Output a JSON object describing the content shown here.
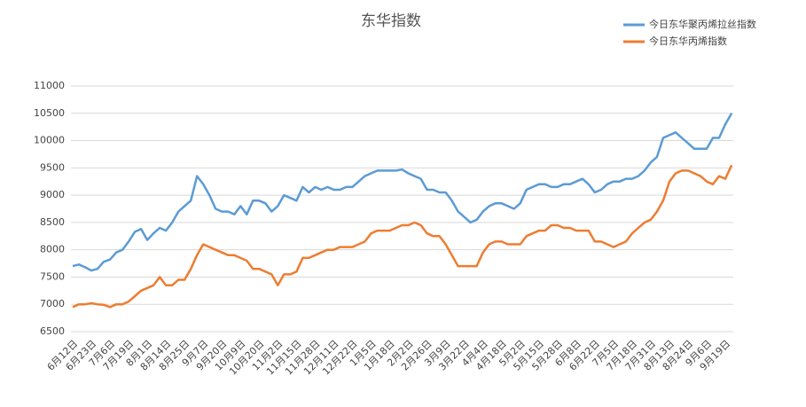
{
  "chart_data": {
    "type": "line",
    "title": "东华指数",
    "categories": [
      "6月12日",
      null,
      null,
      "6月23日",
      null,
      null,
      "7月6日",
      null,
      null,
      "7月19日",
      null,
      null,
      "8月1日",
      null,
      null,
      "8月14日",
      null,
      null,
      "8月25日",
      null,
      null,
      "9月7日",
      null,
      null,
      "9月20日",
      null,
      null,
      "10月9日",
      null,
      null,
      "10月20日",
      null,
      null,
      "11月2日",
      null,
      null,
      "11月15日",
      null,
      null,
      "11月28日",
      null,
      null,
      "12月11日",
      null,
      null,
      "12月22日",
      null,
      null,
      "1月5日",
      null,
      null,
      "1月18日",
      null,
      null,
      "2月2日",
      null,
      null,
      "2月26日",
      null,
      null,
      "3月9日",
      null,
      null,
      "3月22日",
      null,
      null,
      "4月4日",
      null,
      null,
      "4月18日",
      null,
      null,
      "5月2日",
      null,
      null,
      "5月15日",
      null,
      null,
      "5月28日",
      null,
      null,
      "6月8日",
      null,
      null,
      "6月22日",
      null,
      null,
      "7月5日",
      null,
      null,
      "7月18日",
      null,
      null,
      "7月31日",
      null,
      null,
      "8月13日",
      null,
      null,
      "8月24日",
      null,
      null,
      "9月6日",
      null,
      null,
      "9月19日",
      null
    ],
    "series": [
      {
        "name": "今日东华聚丙烯拉丝指数",
        "color": "#5b9bd5",
        "values": [
          7700,
          7730,
          7680,
          7620,
          7650,
          7780,
          7820,
          7950,
          8000,
          8150,
          8330,
          8380,
          8180,
          8300,
          8400,
          8350,
          8500,
          8700,
          8800,
          8900,
          9350,
          9200,
          9000,
          8750,
          8700,
          8700,
          8650,
          8800,
          8650,
          8900,
          8900,
          8850,
          8700,
          8800,
          9000,
          8950,
          8900,
          9150,
          9050,
          9150,
          9100,
          9150,
          9100,
          9100,
          9150,
          9150,
          9250,
          9350,
          9400,
          9450,
          9450,
          9450,
          9450,
          9470,
          9400,
          9350,
          9300,
          9100,
          9100,
          9050,
          9050,
          8900,
          8700,
          8600,
          8500,
          8550,
          8700,
          8800,
          8850,
          8850,
          8800,
          8750,
          8850,
          9100,
          9150,
          9200,
          9200,
          9150,
          9150,
          9200,
          9200,
          9250,
          9300,
          9200,
          9050,
          9100,
          9200,
          9250,
          9250,
          9300,
          9300,
          9350,
          9450,
          9600,
          9700,
          10050,
          10100,
          10150,
          10050,
          9950,
          9850,
          9850,
          9850,
          10050,
          10050,
          10300,
          10500
        ]
      },
      {
        "name": "今日东华丙烯指数",
        "color": "#ed7d31",
        "values": [
          6950,
          7000,
          7000,
          7020,
          7000,
          6990,
          6950,
          7000,
          7000,
          7050,
          7150,
          7250,
          7300,
          7350,
          7500,
          7350,
          7350,
          7450,
          7450,
          7650,
          7900,
          8100,
          8050,
          8000,
          7950,
          7900,
          7900,
          7850,
          7800,
          7650,
          7650,
          7600,
          7550,
          7350,
          7550,
          7550,
          7600,
          7850,
          7850,
          7900,
          7950,
          8000,
          8000,
          8050,
          8050,
          8050,
          8100,
          8150,
          8300,
          8350,
          8350,
          8350,
          8400,
          8450,
          8450,
          8500,
          8450,
          8300,
          8250,
          8250,
          8100,
          7900,
          7700,
          7700,
          7700,
          7700,
          7950,
          8100,
          8150,
          8150,
          8100,
          8100,
          8100,
          8250,
          8300,
          8350,
          8350,
          8450,
          8450,
          8400,
          8400,
          8350,
          8350,
          8350,
          8150,
          8150,
          8100,
          8050,
          8100,
          8150,
          8300,
          8400,
          8500,
          8550,
          8700,
          8900,
          9250,
          9400,
          9450,
          9450,
          9400,
          9350,
          9250,
          9200,
          9350,
          9300,
          9550
        ]
      }
    ],
    "ylim": [
      6500,
      11000
    ],
    "yticks": [
      6500,
      7000,
      7500,
      8000,
      8500,
      9000,
      9500,
      10000,
      10500,
      11000
    ],
    "grid": true,
    "legend": "top-right"
  }
}
